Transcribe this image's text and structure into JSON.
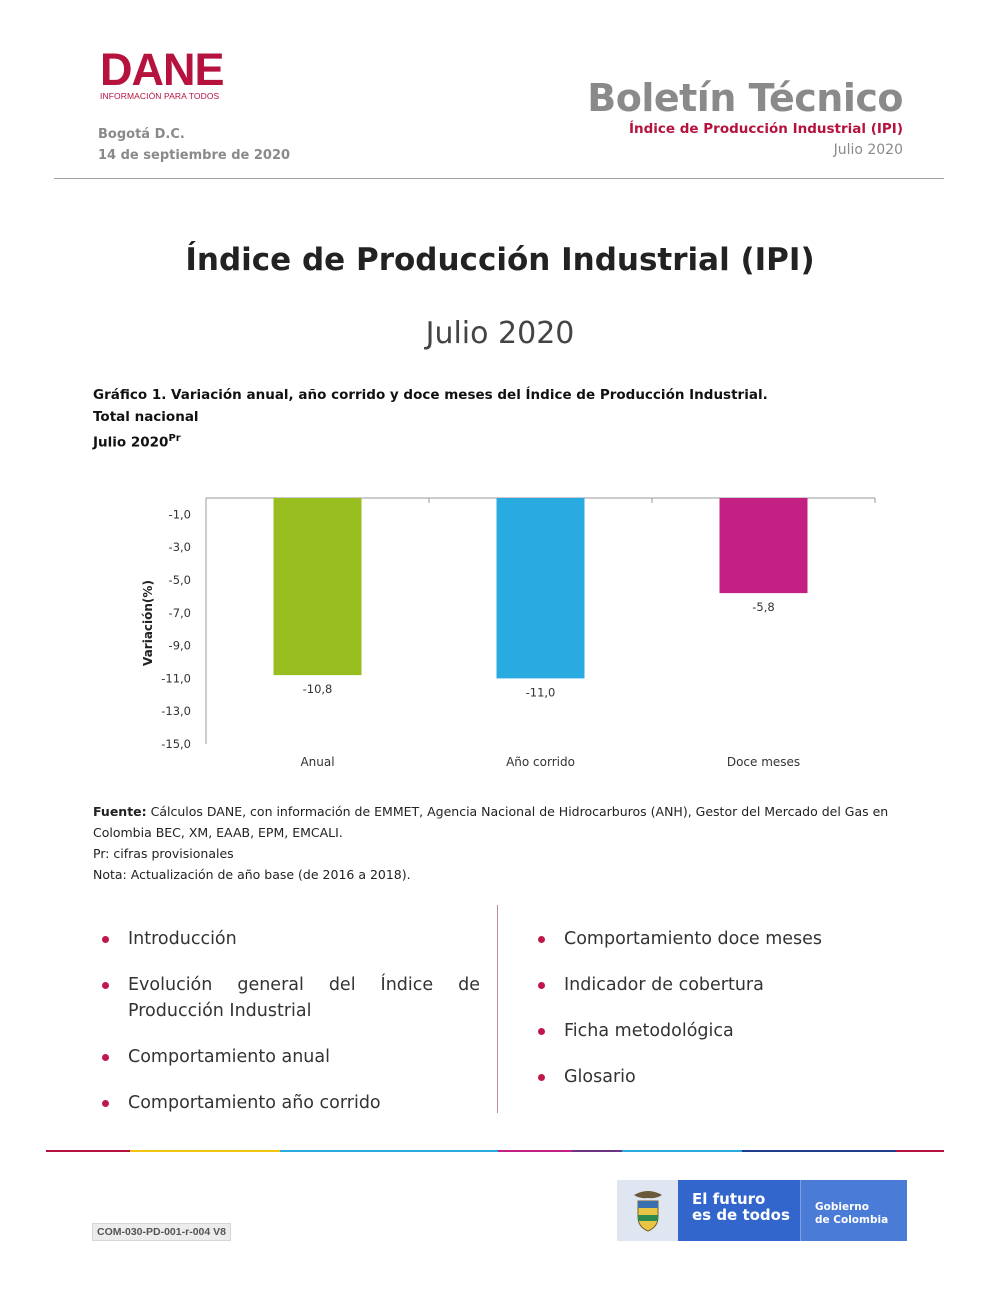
{
  "header": {
    "logo_word": "DANE",
    "logo_tagline": "INFORMACIÓN PARA TODOS",
    "city": "Bogotá D.C.",
    "date": "14 de septiembre de 2020",
    "bulletin_title": "Boletín Técnico",
    "bulletin_subtitle": "Índice de Producción Industrial (IPI)",
    "bulletin_period": "Julio 2020"
  },
  "main": {
    "title": "Índice de Producción Industrial (IPI)",
    "period": "Julio 2020"
  },
  "chart_caption": {
    "line1": "Gráfico 1. Variación anual, año corrido y doce meses del Índice de Producción Industrial.",
    "line2": "Total nacional",
    "line3": "Julio 2020",
    "line3_sup": "Pr"
  },
  "chart_data": {
    "type": "bar",
    "categories": [
      "Anual",
      "Año corrido",
      "Doce meses"
    ],
    "values": [
      -10.8,
      -11.0,
      -5.8
    ],
    "value_labels": [
      "-10,8",
      "-11,0",
      "-5,8"
    ],
    "colors": [
      "#97bd1f",
      "#29abe2",
      "#c41f82"
    ],
    "ylabel": "Variación(%)",
    "yticks": [
      -1.0,
      -3.0,
      -5.0,
      -7.0,
      -9.0,
      -11.0,
      -13.0,
      -15.0
    ],
    "ytick_labels": [
      "-1,0",
      "-3,0",
      "-5,0",
      "-7,0",
      "-9,0",
      "-11,0",
      "-13,0",
      "-15,0"
    ],
    "ylim": [
      -15.0,
      0.0
    ],
    "grid": false
  },
  "notes": {
    "fuente_label": "Fuente:",
    "fuente_text": " Cálculos DANE, con información de EMMET, Agencia Nacional de Hidrocarburos (ANH), Gestor del Mercado del Gas en Colombia BEC, XM, EAAB, EPM, EMCALI.",
    "pr": "Pr: cifras provisionales",
    "nota": "Nota: Actualización de año base (de 2016 a 2018)."
  },
  "index": {
    "left": [
      "Introducción",
      "Evolución general del Índice de Producción Industrial",
      "Comportamiento anual",
      "Comportamiento año corrido"
    ],
    "right": [
      "Comportamiento doce meses",
      "Indicador de cobertura",
      "Ficha metodológica",
      "Glosario"
    ]
  },
  "footer": {
    "code": "COM-030-PD-001-r-004 V8",
    "gov_slogan_1": "El futuro",
    "gov_slogan_2": "es de todos",
    "gov_name_1": "Gobierno",
    "gov_name_2": "de Colombia",
    "bar_colors": [
      "#b5123e",
      "#f1c40f",
      "#29abe2",
      "#c41f82",
      "#6c3483",
      "#29abe2",
      "#1f3c88",
      "#b5123e"
    ]
  }
}
